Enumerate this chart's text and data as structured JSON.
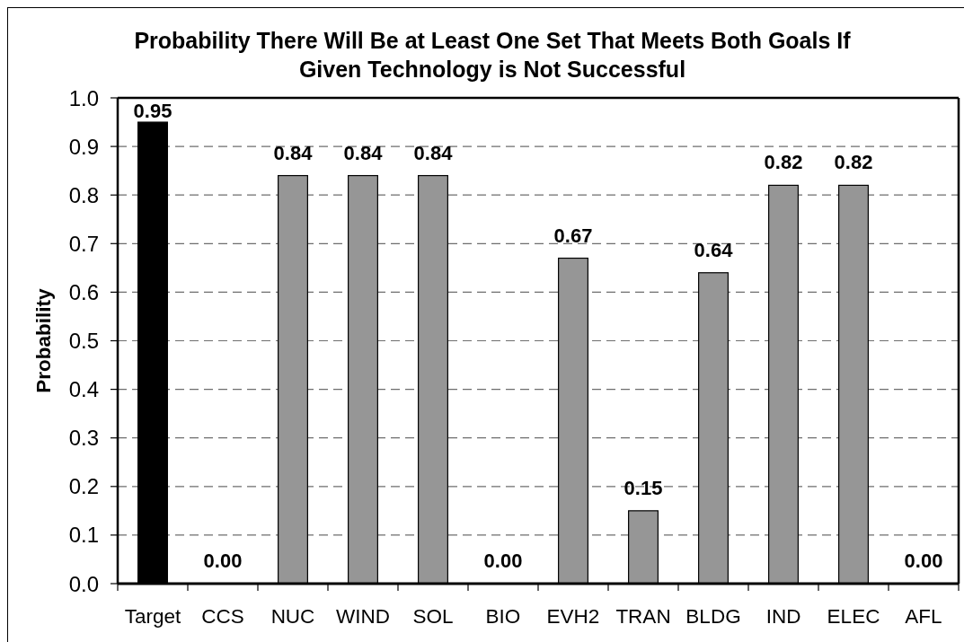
{
  "chart_data": {
    "type": "bar",
    "title": "Probability There Will Be at Least One Set That Meets Both Goals If Given Technology is Not Successful",
    "ylabel": "Probability",
    "categories": [
      "Target",
      "CCS",
      "NUC",
      "WIND",
      "SOL",
      "BIO",
      "EVH2",
      "TRAN",
      "BLDG",
      "IND",
      "ELEC",
      "AFL"
    ],
    "values": [
      0.95,
      0,
      0.84,
      0.84,
      0.84,
      0,
      0.67,
      0.15,
      0.64,
      0.82,
      0.82,
      0
    ],
    "colors": [
      "#000000",
      "#969696",
      "#969696",
      "#969696",
      "#969696",
      "#969696",
      "#969696",
      "#969696",
      "#969696",
      "#969696",
      "#969696",
      "#969696"
    ],
    "value_labels": [
      "0.95",
      "0.00",
      "0.84",
      "0.84",
      "0.84",
      "0.00",
      "0.67",
      "0.15",
      "0.64",
      "0.82",
      "0.82",
      "0.00"
    ],
    "ylim": [
      0,
      1
    ],
    "yticks": [
      {
        "value": 0,
        "label": "0.0"
      },
      0.1,
      0.2,
      0.3,
      0.4,
      0.5,
      0.6,
      0.7,
      0.8,
      0.9,
      {
        "value": 1,
        "label": "1.0"
      }
    ],
    "grid": "y"
  }
}
